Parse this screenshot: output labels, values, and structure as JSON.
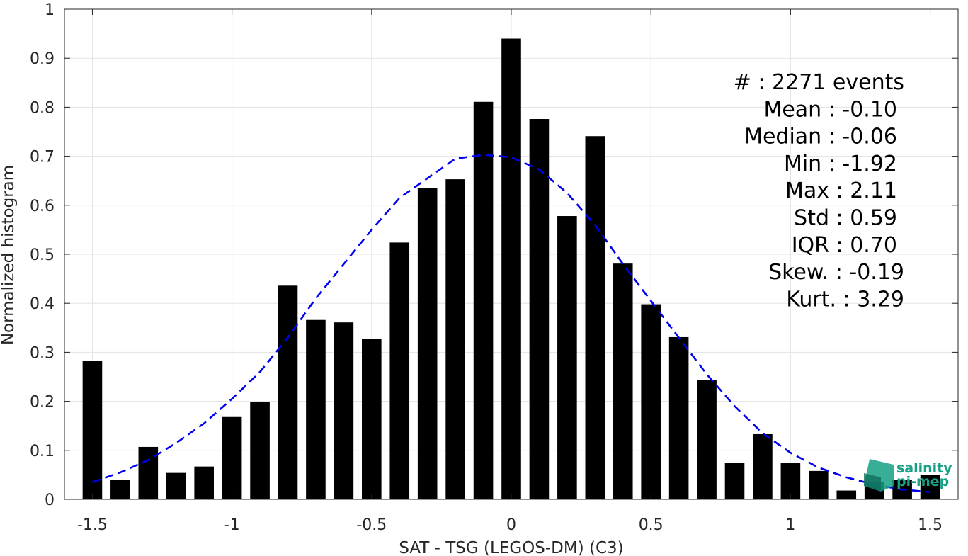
{
  "chart_data": {
    "type": "bar",
    "xlabel": "SAT - TSG (LEGOS-DM) (C3)",
    "ylabel": "Normalized histogram",
    "xlim": [
      -1.6,
      1.6
    ],
    "ylim": [
      0,
      1
    ],
    "xticks": [
      "-1.5",
      "-1",
      "-0.5",
      "0",
      "0.5",
      "1",
      "1.5"
    ],
    "xtick_values": [
      -1.5,
      -1,
      -0.5,
      0,
      0.5,
      1,
      1.5
    ],
    "yticks": [
      "0",
      "0.1",
      "0.2",
      "0.3",
      "0.4",
      "0.5",
      "0.6",
      "0.7",
      "0.8",
      "0.9",
      "1"
    ],
    "ytick_values": [
      0,
      0.1,
      0.2,
      0.3,
      0.4,
      0.5,
      0.6,
      0.7,
      0.8,
      0.9,
      1
    ],
    "grid": true,
    "bar_color": "#000000",
    "bars": {
      "x": [
        -1.5,
        -1.4,
        -1.3,
        -1.2,
        -1.1,
        -1.0,
        -0.9,
        -0.8,
        -0.7,
        -0.6,
        -0.5,
        -0.4,
        -0.3,
        -0.2,
        -0.1,
        0.0,
        0.1,
        0.2,
        0.3,
        0.4,
        0.5,
        0.6,
        0.7,
        0.8,
        0.9,
        1.0,
        1.1,
        1.2,
        1.3,
        1.4,
        1.5
      ],
      "values": [
        0.283,
        0.04,
        0.107,
        0.054,
        0.067,
        0.168,
        0.199,
        0.436,
        0.366,
        0.361,
        0.327,
        0.524,
        0.635,
        0.653,
        0.811,
        0.94,
        0.776,
        0.578,
        0.741,
        0.481,
        0.398,
        0.331,
        0.243,
        0.075,
        0.133,
        0.075,
        0.058,
        0.018,
        0.035,
        0.04,
        0.05
      ],
      "width": 0.07
    },
    "fit_curve": {
      "style": "dashed",
      "color": "#0000ee",
      "x": [
        -1.5,
        -1.4,
        -1.3,
        -1.2,
        -1.1,
        -1.0,
        -0.9,
        -0.8,
        -0.7,
        -0.6,
        -0.5,
        -0.4,
        -0.3,
        -0.2,
        -0.1,
        0.0,
        0.1,
        0.2,
        0.3,
        0.4,
        0.5,
        0.6,
        0.7,
        0.8,
        0.9,
        1.0,
        1.1,
        1.2,
        1.3,
        1.4,
        1.5
      ],
      "y": [
        0.035,
        0.055,
        0.08,
        0.115,
        0.155,
        0.205,
        0.26,
        0.33,
        0.41,
        0.48,
        0.55,
        0.615,
        0.655,
        0.695,
        0.703,
        0.698,
        0.673,
        0.625,
        0.56,
        0.48,
        0.405,
        0.33,
        0.255,
        0.19,
        0.135,
        0.095,
        0.065,
        0.045,
        0.03,
        0.02,
        0.015
      ]
    },
    "stats": [
      "#  : 2271 events",
      "Mean : -0.10",
      "Median : -0.06",
      "Min : -1.92",
      "Max : 2.11",
      "Std : 0.59",
      "IQR : 0.70",
      "Skew. : -0.19",
      "Kurt. : 3.29"
    ]
  },
  "logo": {
    "line1": "salinity",
    "line2": "pi-mep",
    "color": "#16a085"
  }
}
